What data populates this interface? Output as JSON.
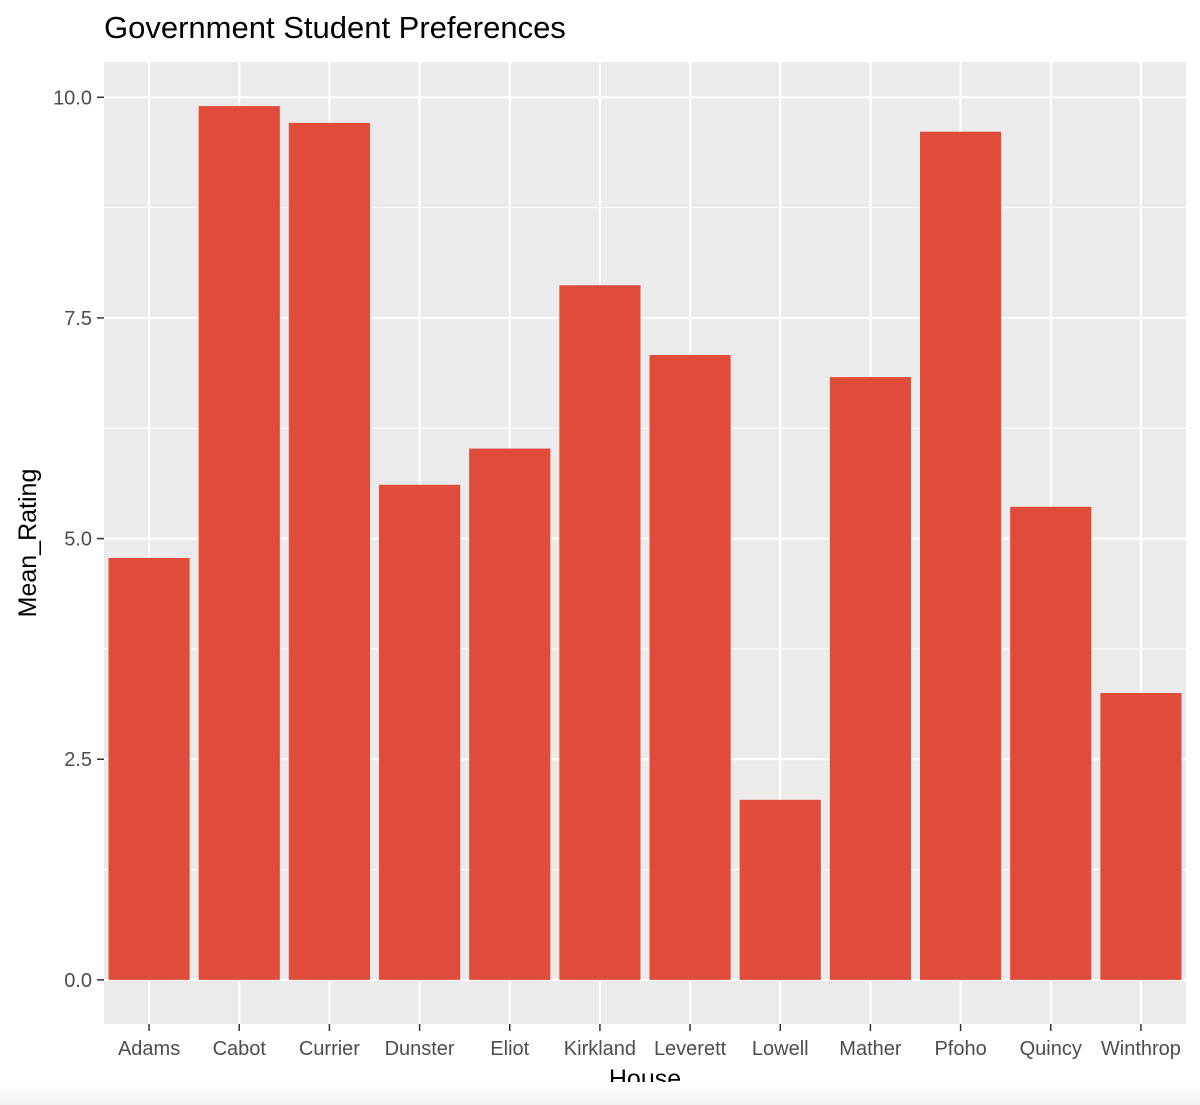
{
  "chart_data": {
    "type": "bar",
    "title": "Government Student Preferences",
    "xlabel": "House",
    "ylabel": "Mean_Rating",
    "categories": [
      "Adams",
      "Cabot",
      "Currier",
      "Dunster",
      "Eliot",
      "Kirkland",
      "Leverett",
      "Lowell",
      "Mather",
      "Pfoho",
      "Quincy",
      "Winthrop"
    ],
    "values": [
      4.78,
      9.9,
      9.71,
      5.61,
      6.02,
      7.87,
      7.08,
      2.04,
      6.83,
      9.61,
      5.36,
      3.25
    ],
    "ylim": [
      -0.5,
      10.4
    ],
    "yticks": [
      0.0,
      2.5,
      5.0,
      7.5,
      10.0
    ],
    "ytick_labels": [
      "0.0",
      "2.5",
      "5.0",
      "7.5",
      "10.0"
    ],
    "grid": true,
    "colors": {
      "bar": "#e04b3a",
      "panel_background": "#ebebeb",
      "grid": "#ffffff"
    }
  }
}
